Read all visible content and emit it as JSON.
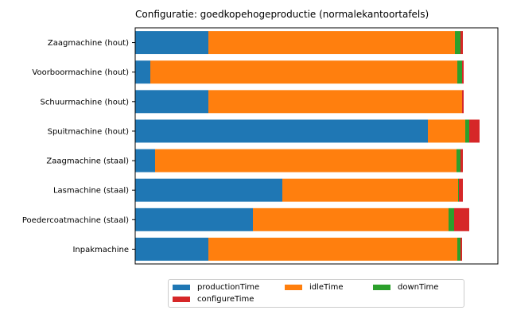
{
  "chart_data": {
    "type": "bar",
    "orientation": "horizontal",
    "stacked": true,
    "title": "Configuratie: goedkopehogeproductie (normalekantoortafels)",
    "xlabel": "",
    "ylabel": "",
    "categories": [
      "Zaagmachine (hout)",
      "Voorboormachine (hout)",
      "Schuurmachine (hout)",
      "Spuitmachine (hout)",
      "Zaagmachine (staal)",
      "Lasmachine (staal)",
      "Poedercoatmachine (staal)",
      "Inpakmachine"
    ],
    "series": [
      {
        "name": "productionTime",
        "color": "#1f77b4",
        "values": [
          92,
          19,
          92,
          368,
          25,
          185,
          148,
          92
        ]
      },
      {
        "name": "idleTime",
        "color": "#ff7f0e",
        "values": [
          310,
          386,
          319,
          47,
          379,
          221,
          246,
          313
        ]
      },
      {
        "name": "downTime",
        "color": "#2ca02c",
        "values": [
          7,
          6,
          0,
          5,
          5,
          1,
          7,
          4
        ]
      },
      {
        "name": "configureTime",
        "color": "#d62728",
        "values": [
          3,
          2,
          2,
          13,
          3,
          5,
          19,
          2
        ]
      }
    ],
    "xlim": [
      0,
      456
    ],
    "show_x_ticks": false,
    "grid": false,
    "legend": {
      "position": "bottom-center",
      "columns": 3
    }
  }
}
